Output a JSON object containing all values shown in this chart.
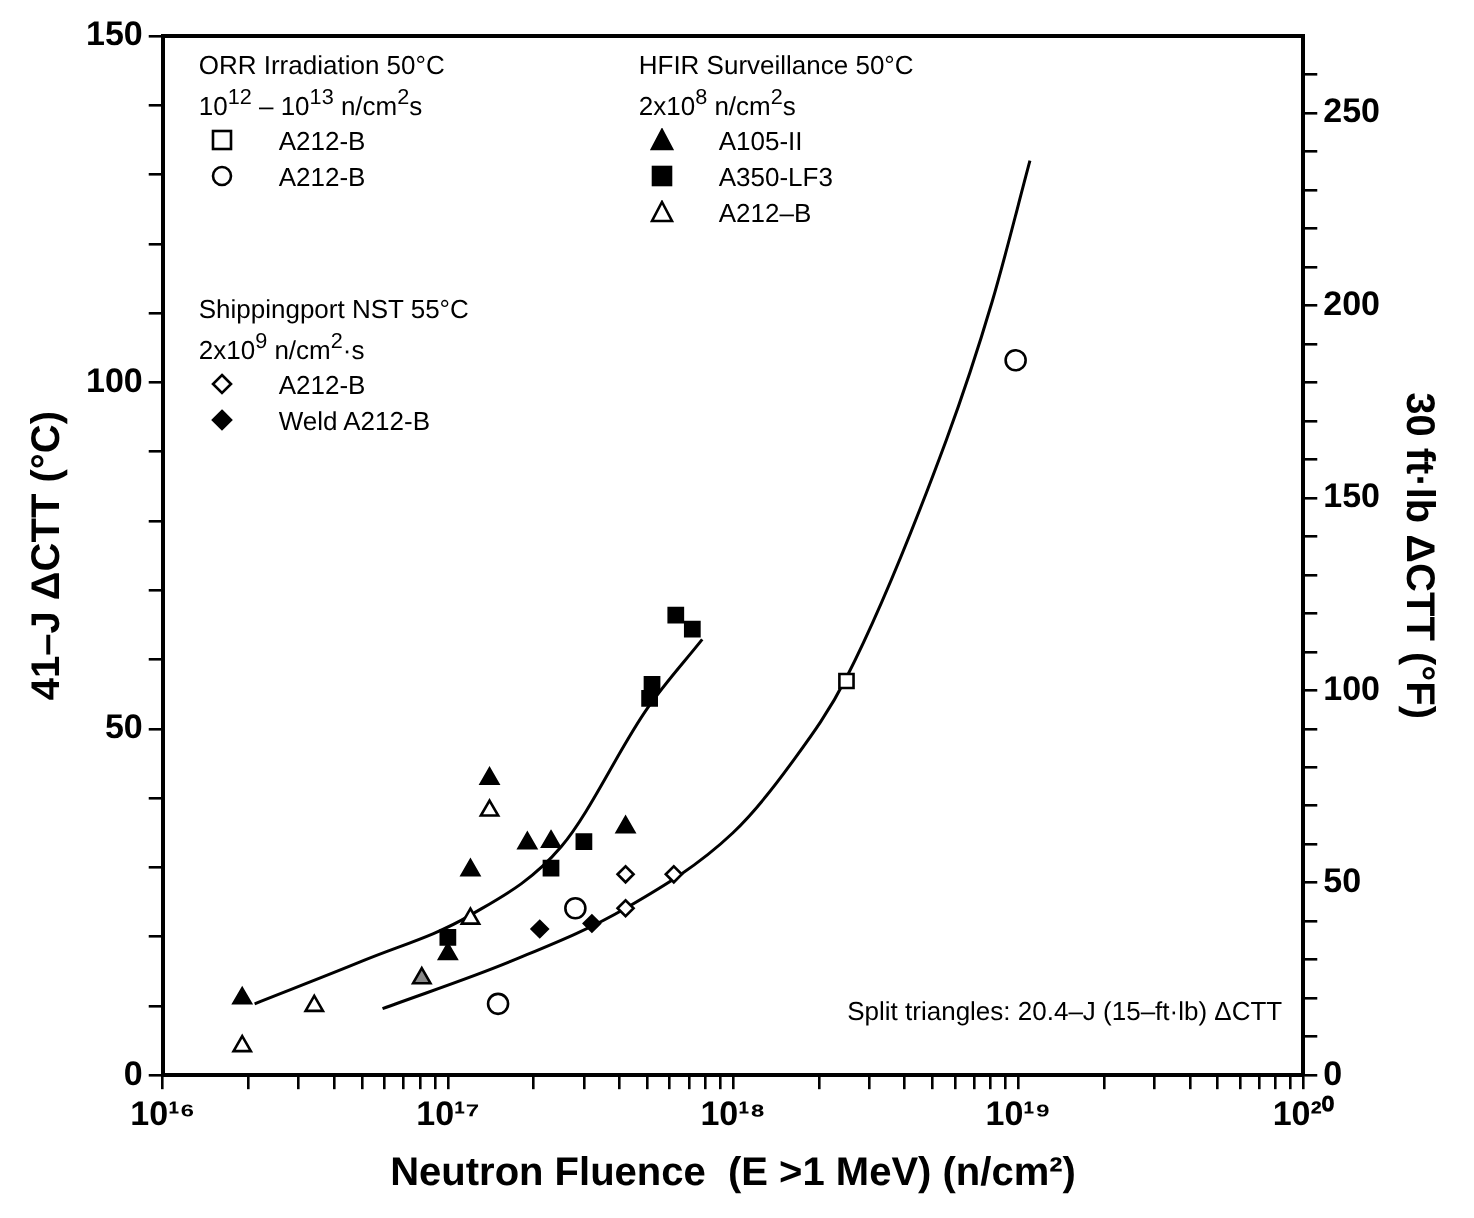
{
  "chart_data": {
    "type": "scatter",
    "xlabel": "Neutron Fluence  (E >1 MeV) (n/cm²)",
    "ylabel": "41–J ΔCTT (°C)",
    "y2label": "30 ft·lb ΔCTT (°F)",
    "log": "x",
    "grid": false,
    "legend": "top left",
    "xlim": [
      1e+16,
      1e+20
    ],
    "xticks": [
      {
        "value": 1e+16,
        "label": "10¹⁶"
      },
      {
        "value": 2e+16,
        "label": null
      },
      {
        "value": 3e+16,
        "label": null
      },
      {
        "value": 4e+16,
        "label": null
      },
      {
        "value": 5e+16,
        "label": null
      },
      {
        "value": 6e+16,
        "label": null
      },
      {
        "value": 7e+16,
        "label": null
      },
      {
        "value": 8e+16,
        "label": null
      },
      {
        "value": 9e+16,
        "label": null
      },
      {
        "value": 1e+17,
        "label": "10¹⁷"
      },
      {
        "value": 2e+17,
        "label": null
      },
      {
        "value": 3e+17,
        "label": null
      },
      {
        "value": 4e+17,
        "label": null
      },
      {
        "value": 5e+17,
        "label": null
      },
      {
        "value": 6e+17,
        "label": null
      },
      {
        "value": 7e+17,
        "label": null
      },
      {
        "value": 8e+17,
        "label": null
      },
      {
        "value": 9e+17,
        "label": null
      },
      {
        "value": 1e+18,
        "label": "10¹⁸"
      },
      {
        "value": 2e+18,
        "label": null
      },
      {
        "value": 3e+18,
        "label": null
      },
      {
        "value": 4e+18,
        "label": null
      },
      {
        "value": 5e+18,
        "label": null
      },
      {
        "value": 6e+18,
        "label": null
      },
      {
        "value": 7e+18,
        "label": null
      },
      {
        "value": 8e+18,
        "label": null
      },
      {
        "value": 9e+18,
        "label": null
      },
      {
        "value": 1e+19,
        "label": "10¹⁹"
      },
      {
        "value": 2e+19,
        "label": null
      },
      {
        "value": 3e+19,
        "label": null
      },
      {
        "value": 4e+19,
        "label": null
      },
      {
        "value": 5e+19,
        "label": null
      },
      {
        "value": 6e+19,
        "label": null
      },
      {
        "value": 7e+19,
        "label": null
      },
      {
        "value": 8e+19,
        "label": null
      },
      {
        "value": 9e+19,
        "label": null
      },
      {
        "value": 1e+20,
        "label": "10²⁰"
      }
    ],
    "ylim": [
      0,
      150
    ],
    "yticks": [
      0,
      {
        "value": 10,
        "label": null
      },
      {
        "value": 20,
        "label": null
      },
      {
        "value": 30,
        "label": null
      },
      {
        "value": 40,
        "label": null
      },
      50,
      {
        "value": 60,
        "label": null
      },
      {
        "value": 70,
        "label": null
      },
      {
        "value": 80,
        "label": null
      },
      {
        "value": 90,
        "label": null
      },
      100,
      {
        "value": 110,
        "label": null
      },
      {
        "value": 120,
        "label": null
      },
      {
        "value": 130,
        "label": null
      },
      {
        "value": 140,
        "label": null
      },
      150
    ],
    "y2lim": [
      0,
      270
    ],
    "y2ticks": [
      0,
      {
        "value": 10,
        "label": null
      },
      {
        "value": 20,
        "label": null
      },
      {
        "value": 30,
        "label": null
      },
      {
        "value": 40,
        "label": null
      },
      50,
      {
        "value": 60,
        "label": null
      },
      {
        "value": 70,
        "label": null
      },
      {
        "value": 80,
        "label": null
      },
      {
        "value": 90,
        "label": null
      },
      100,
      {
        "value": 110,
        "label": null
      },
      {
        "value": 120,
        "label": null
      },
      {
        "value": 130,
        "label": null
      },
      {
        "value": 140,
        "label": null
      },
      150,
      {
        "value": 160,
        "label": null
      },
      {
        "value": 170,
        "label": null
      },
      {
        "value": 180,
        "label": null
      },
      {
        "value": 190,
        "label": null
      },
      200,
      {
        "value": 210,
        "label": null
      },
      {
        "value": 220,
        "label": null
      },
      {
        "value": 230,
        "label": null
      },
      {
        "value": 240,
        "label": null
      },
      250,
      {
        "value": 260,
        "label": null
      }
    ],
    "annotations": [
      "ORR Irradiation 50°C",
      "10$^{12}$ – 10$^{13}$ n/cm$^{2}$s",
      "HFIR Surveillance 50°C",
      "2x10$^{8}$ n/cm$^{2}$s",
      "Shippingport NST 55°C",
      "2x10$^{9}$ n/cm$^{2}$·s",
      "Split triangles: 20.4–J (15–ft·lb) ΔCTT"
    ],
    "series": [
      {
        "name": "A212-B",
        "color": "#000000",
        "marker": "square-open",
        "x": [
          2.5e+18
        ],
        "values": [
          56.9
        ]
      },
      {
        "name": "A212-B",
        "color": "#000000",
        "marker": "circle-open",
        "x": [
          1.5e+17,
          2.8e+17,
          9.8e+18
        ],
        "values": [
          10.3,
          24.1,
          103.2
        ]
      },
      {
        "name": "A105-II",
        "color": "#000000",
        "marker": "triangle",
        "x": [
          1.9e+16,
          1e+17,
          1.2e+17,
          1.4e+17,
          1.9e+17,
          2.3e+17,
          4.2e+17
        ],
        "values": [
          11.1,
          17.5,
          29.6,
          42.8,
          33.5,
          33.7,
          35.8
        ]
      },
      {
        "name": "A350-LF3",
        "color": "#000000",
        "marker": "square",
        "x": [
          1e+17,
          2.3e+17,
          3e+17,
          5.1e+17,
          5.2e+17,
          6.3e+17,
          7.2e+17
        ],
        "values": [
          19.9,
          29.9,
          33.7,
          54.4,
          56.4,
          66.4,
          64.4
        ]
      },
      {
        "name": "A212–B",
        "color": "#000000",
        "marker": "triangle-open",
        "x": [
          1.9e+16,
          3.4e+16,
          1.2e+17,
          1.4e+17
        ],
        "values": [
          4.2,
          10.0,
          22.6,
          38.2
        ]
      },
      {
        "name": "A212-B",
        "color": "#000000",
        "marker": "diamond-open",
        "x": [
          4.2e+17,
          4.2e+17,
          6.2e+17
        ],
        "values": [
          29.0,
          24.1,
          29.0
        ]
      },
      {
        "name": "Weld A212-B",
        "color": "#000000",
        "marker": "diamond",
        "x": [
          2.1e+17,
          3.2e+17
        ],
        "values": [
          21.1,
          21.9
        ]
      },
      {
        "color": "#000000",
        "marker": "triangle-split",
        "x": [
          8.1e+16
        ],
        "values": [
          14.0
        ]
      },
      {
        "type": "line",
        "color": "#000000",
        "marker": "none",
        "x": [
          2.1e+16,
          5.1e+16,
          1.2e+17,
          2.5e+17,
          5e+17,
          7.8e+17
        ],
        "values": [
          10.3,
          16.6,
          23.1,
          33.0,
          52.9,
          62.9
        ]
      },
      {
        "type": "line",
        "color": "#000000",
        "marker": "none",
        "x": [
          5.9e+16,
          1.7e+17,
          4.2e+17,
          1e+18,
          1.6e+18,
          2.5e+18,
          5.6e+18,
          8.1e+18,
          1.1e+19
        ],
        "values": [
          9.6,
          16.6,
          24.1,
          35.0,
          45,
          57.4,
          91.7,
          111.6,
          132
        ]
      }
    ]
  }
}
